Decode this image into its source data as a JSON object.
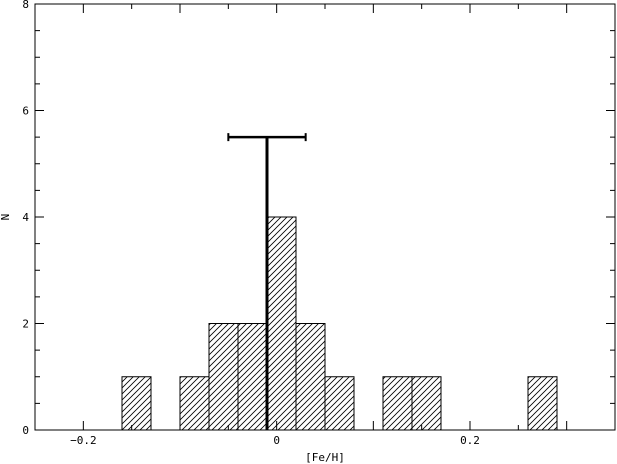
{
  "chart_data": {
    "type": "bar",
    "title": "",
    "xlabel": "[Fe/H]",
    "ylabel": "N",
    "xlim": [
      -0.25,
      0.35
    ],
    "ylim": [
      0,
      8
    ],
    "x_ticks": [
      -0.2,
      0,
      0.2
    ],
    "x_tick_labels": [
      "−0.2",
      "0",
      "0.2"
    ],
    "y_ticks": [
      0,
      2,
      4,
      6,
      8
    ],
    "y_tick_labels": [
      "0",
      "2",
      "4",
      "6",
      "8"
    ],
    "grid": false,
    "legend": "none",
    "bin_width": 0.03,
    "bins": [
      {
        "x0": -0.16,
        "x1": -0.13,
        "count": 1
      },
      {
        "x0": -0.1,
        "x1": -0.07,
        "count": 1
      },
      {
        "x0": -0.07,
        "x1": -0.04,
        "count": 2
      },
      {
        "x0": -0.04,
        "x1": -0.01,
        "count": 2
      },
      {
        "x0": -0.01,
        "x1": 0.02,
        "count": 4
      },
      {
        "x0": 0.02,
        "x1": 0.05,
        "count": 2
      },
      {
        "x0": 0.05,
        "x1": 0.08,
        "count": 1
      },
      {
        "x0": 0.11,
        "x1": 0.14,
        "count": 1
      },
      {
        "x0": 0.14,
        "x1": 0.17,
        "count": 1
      },
      {
        "x0": 0.26,
        "x1": 0.29,
        "count": 1
      }
    ],
    "mean_marker": {
      "x": -0.01,
      "height": 5.5,
      "err_low": -0.05,
      "err_high": 0.03
    },
    "colors": {
      "bar_edge": "#000000",
      "hatch": "#000000",
      "background": "#ffffff"
    }
  }
}
